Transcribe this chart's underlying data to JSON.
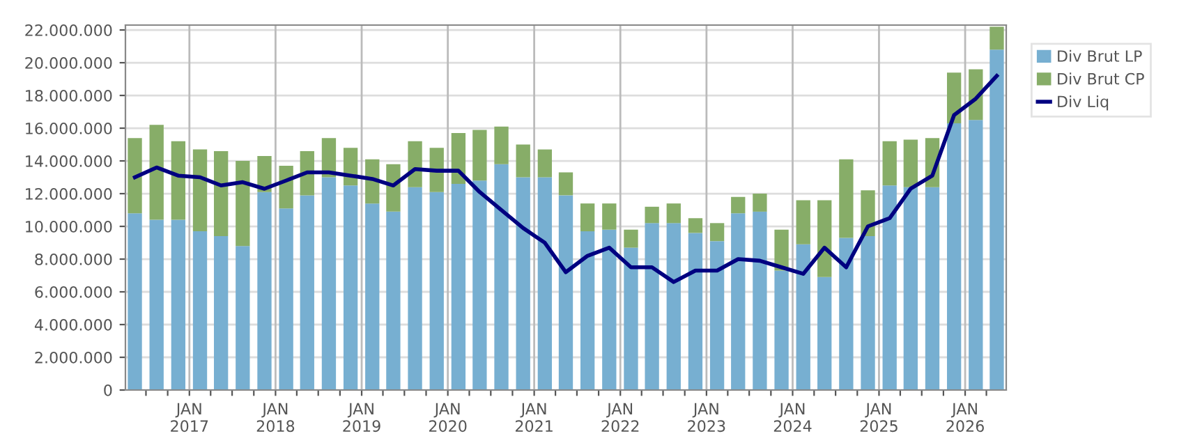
{
  "chart_data": {
    "type": "bar",
    "stacked": true,
    "x": [
      "2016-05-15",
      "2016-08-15",
      "2016-11-15",
      "2017-02-15",
      "2017-05-15",
      "2017-08-15",
      "2017-11-15",
      "2018-02-15",
      "2018-05-15",
      "2018-08-15",
      "2018-11-15",
      "2019-02-15",
      "2019-05-15",
      "2019-08-15",
      "2019-11-15",
      "2020-02-15",
      "2020-05-15",
      "2020-08-15",
      "2020-11-15",
      "2021-02-15",
      "2021-05-15",
      "2021-08-15",
      "2021-11-15",
      "2022-02-15",
      "2022-05-15",
      "2022-08-15",
      "2022-11-15",
      "2023-02-15",
      "2023-05-15",
      "2023-08-15",
      "2023-11-15",
      "2024-02-15",
      "2024-05-15",
      "2024-08-15",
      "2024-11-15",
      "2025-02-15",
      "2025-05-15",
      "2025-08-15",
      "2025-11-15",
      "2026-02-15",
      "2026-05-15"
    ],
    "series": [
      {
        "name": "Div Brut LP",
        "color": "#77afd1",
        "values": [
          10800000,
          10400000,
          10400000,
          9700000,
          9400000,
          8800000,
          12100000,
          11100000,
          11900000,
          13000000,
          12500000,
          11400000,
          10900000,
          12400000,
          12100000,
          12600000,
          12800000,
          13800000,
          13000000,
          13000000,
          11900000,
          9700000,
          9800000,
          8700000,
          10200000,
          10200000,
          9600000,
          9100000,
          10800000,
          10900000,
          7300000,
          8900000,
          6900000,
          9300000,
          9400000,
          12500000,
          12400000,
          12400000,
          16300000,
          16500000,
          20800000
        ]
      },
      {
        "name": "Div Brut CP",
        "color": "#87ad68",
        "values": [
          4600000,
          5800000,
          4800000,
          5000000,
          5200000,
          5200000,
          2200000,
          2600000,
          2700000,
          2400000,
          2300000,
          2700000,
          2900000,
          2800000,
          2700000,
          3100000,
          3100000,
          2300000,
          2000000,
          1700000,
          1400000,
          1700000,
          1600000,
          1100000,
          1000000,
          1200000,
          900000,
          1100000,
          1000000,
          1100000,
          2500000,
          2700000,
          4700000,
          4800000,
          2800000,
          2700000,
          2900000,
          3000000,
          3100000,
          3100000,
          1400000
        ]
      },
      {
        "name": "Div Liq",
        "type": "line",
        "color": "#000080",
        "values": [
          13000000,
          13600000,
          13100000,
          13000000,
          12500000,
          12700000,
          12300000,
          12800000,
          13300000,
          13300000,
          13100000,
          12900000,
          12500000,
          13500000,
          13400000,
          13400000,
          12100000,
          11000000,
          9900000,
          9000000,
          7200000,
          8200000,
          8700000,
          7500000,
          7500000,
          6600000,
          7300000,
          7300000,
          8000000,
          7900000,
          7500000,
          7100000,
          8700000,
          7500000,
          10000000,
          10500000,
          12300000,
          13100000,
          16800000,
          17800000,
          19200000
        ]
      }
    ],
    "xlim": [
      "2016-04-05",
      "2026-06-24"
    ],
    "xticks": [
      {
        "value": "2016-07",
        "label": null
      },
      {
        "value": "2016-10",
        "label": null
      },
      {
        "value": "2017-01",
        "label": "JAN\n2017"
      },
      {
        "value": "2017-04",
        "label": null
      },
      {
        "value": "2017-07",
        "label": null
      },
      {
        "value": "2017-10",
        "label": null
      },
      {
        "value": "2018-01",
        "label": "JAN\n2018"
      },
      {
        "value": "2018-04",
        "label": null
      },
      {
        "value": "2018-07",
        "label": null
      },
      {
        "value": "2018-10",
        "label": null
      },
      {
        "value": "2019-01",
        "label": "JAN\n2019"
      },
      {
        "value": "2019-04",
        "label": null
      },
      {
        "value": "2019-07",
        "label": null
      },
      {
        "value": "2019-10",
        "label": null
      },
      {
        "value": "2020-01",
        "label": "JAN\n2020"
      },
      {
        "value": "2020-04",
        "label": null
      },
      {
        "value": "2020-07",
        "label": null
      },
      {
        "value": "2020-10",
        "label": null
      },
      {
        "value": "2021-01",
        "label": "JAN\n2021"
      },
      {
        "value": "2021-04",
        "label": null
      },
      {
        "value": "2021-07",
        "label": null
      },
      {
        "value": "2021-10",
        "label": null
      },
      {
        "value": "2022-01",
        "label": "JAN\n2022"
      },
      {
        "value": "2022-04",
        "label": null
      },
      {
        "value": "2022-07",
        "label": null
      },
      {
        "value": "2022-10",
        "label": null
      },
      {
        "value": "2023-01",
        "label": "JAN\n2023"
      },
      {
        "value": "2023-04",
        "label": null
      },
      {
        "value": "2023-07",
        "label": null
      },
      {
        "value": "2023-10",
        "label": null
      },
      {
        "value": "2024-01",
        "label": "JAN\n2024"
      },
      {
        "value": "2024-04",
        "label": null
      },
      {
        "value": "2024-07",
        "label": null
      },
      {
        "value": "2024-10",
        "label": null
      },
      {
        "value": "2025-01",
        "label": "JAN\n2025"
      },
      {
        "value": "2025-04",
        "label": null
      },
      {
        "value": "2025-07",
        "label": null
      },
      {
        "value": "2025-10",
        "label": null
      },
      {
        "value": "2026-01",
        "label": "JAN\n2026"
      },
      {
        "value": "2026-04",
        "label": null
      }
    ],
    "ylim": [
      0,
      22300000
    ],
    "yticks": [
      0,
      {
        "value": 2000000,
        "label": "2.000.000"
      },
      {
        "value": 4000000,
        "label": "4.000.000"
      },
      {
        "value": 6000000,
        "label": "6.000.000"
      },
      {
        "value": 8000000,
        "label": "8.000.000"
      },
      {
        "value": 10000000,
        "label": "10.000.000"
      },
      {
        "value": 12000000,
        "label": "12.000.000"
      },
      {
        "value": 14000000,
        "label": "14.000.000"
      },
      {
        "value": 16000000,
        "label": "16.000.000"
      },
      {
        "value": 18000000,
        "label": "18.000.000"
      },
      {
        "value": 20000000,
        "label": "20.000.000"
      },
      {
        "value": 22000000,
        "label": "22.000.000"
      }
    ],
    "grid": true,
    "legend": "top right"
  }
}
